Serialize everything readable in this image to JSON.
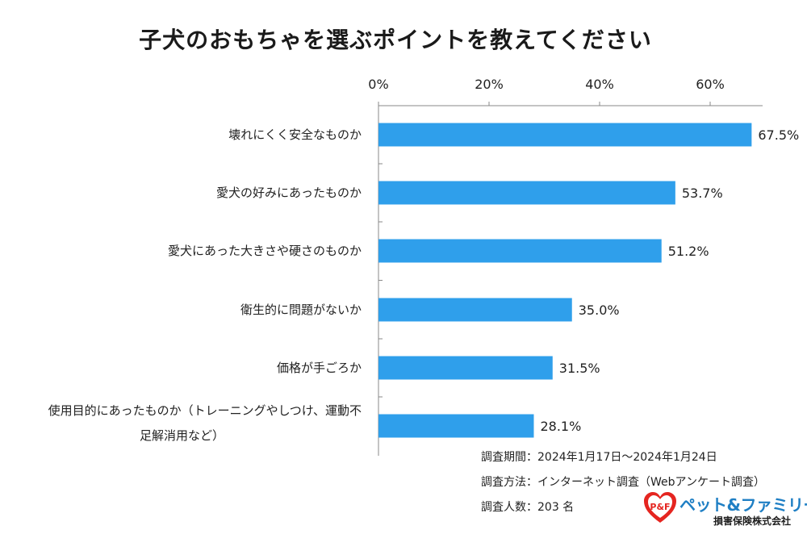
{
  "chart_data": {
    "type": "bar",
    "orientation": "horizontal",
    "title": "子犬のおもちゃを選ぶポイントを教えてください",
    "categories": [
      "壊れにくく安全なものか",
      "愛犬の好みにあったものか",
      "愛犬にあった大きさや硬さのものか",
      "衛生的に問題がないか",
      "価格が手ごろか",
      "使用目的にあったものか（トレーニングやしつけ、運動不足解消用など）"
    ],
    "values": [
      67.5,
      53.7,
      51.2,
      35.0,
      31.5,
      28.1
    ],
    "value_labels": [
      "67.5%",
      "53.7%",
      "51.2%",
      "35.0%",
      "31.5%",
      "28.1%"
    ],
    "xlim": [
      0,
      70
    ],
    "xticks": [
      0,
      20,
      40,
      60
    ],
    "xtick_labels": [
      "0%",
      "20%",
      "40%",
      "60%"
    ],
    "x_axis_position": "top",
    "grid": false,
    "legend": "none",
    "bar_color": "#2f9feb"
  },
  "footnotes": {
    "period": "調査期間：2024年1月17日～2024年1月24日",
    "method": "調査方法：インターネット調査（Webアンケート調査）",
    "count": "調査人数：203 名"
  },
  "logo": {
    "name": "ペット&ファミリー",
    "sub": "損害保険株式会社",
    "badge": "P&F",
    "icon": "heart-icon",
    "colors": {
      "heart": "#e52520",
      "text": "#1f7fc4"
    }
  }
}
